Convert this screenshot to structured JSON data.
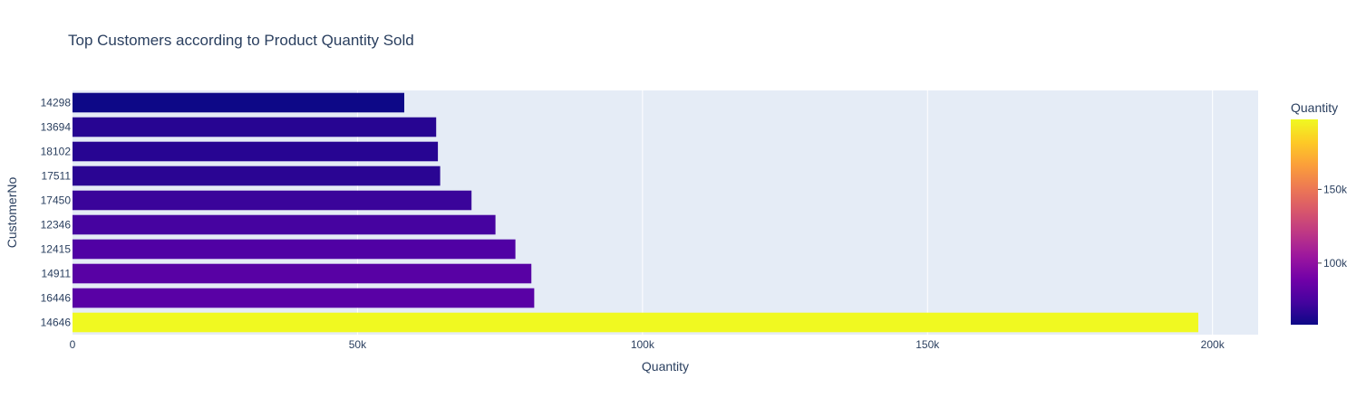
{
  "chart_data": {
    "type": "bar",
    "orientation": "horizontal",
    "title": "Top Customers according to Product Quantity Sold",
    "xlabel": "Quantity",
    "ylabel": "CustomerNo",
    "xlim": [
      0,
      208000
    ],
    "x_ticks": [
      {
        "value": 0,
        "label": "0"
      },
      {
        "value": 50000,
        "label": "50k"
      },
      {
        "value": 100000,
        "label": "100k"
      },
      {
        "value": 150000,
        "label": "150k"
      },
      {
        "value": 200000,
        "label": "200k"
      }
    ],
    "categories": [
      "14298",
      "13694",
      "18102",
      "17511",
      "17450",
      "12346",
      "12415",
      "14911",
      "16446",
      "14646"
    ],
    "values": [
      58200,
      63800,
      64100,
      64500,
      70000,
      74200,
      77700,
      80500,
      81000,
      197500
    ],
    "colors": [
      "#0d0887",
      "#270592",
      "#270592",
      "#2a0593",
      "#3a049a",
      "#4603a0",
      "#5001a4",
      "#5801a4",
      "#5901a5",
      "#f0f921"
    ],
    "grid": true,
    "plot_background": "#e5ecf6",
    "colorbar": {
      "title": "Quantity",
      "range": [
        58200,
        197500
      ],
      "ticks": [
        {
          "value": 100000,
          "label": "100k"
        },
        {
          "value": 150000,
          "label": "150k"
        }
      ],
      "colorscale": [
        "#0d0887",
        "#46039f",
        "#7201a8",
        "#9c179e",
        "#bd3786",
        "#d8576b",
        "#ed7953",
        "#fb9f3a",
        "#fdca26",
        "#f0f921"
      ]
    }
  }
}
